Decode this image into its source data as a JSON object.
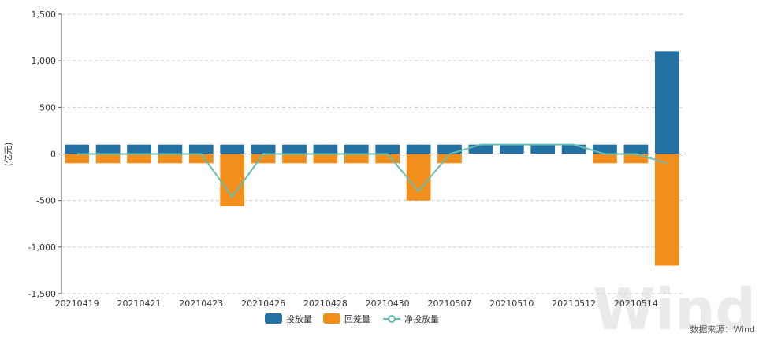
{
  "chart_data": {
    "type": "bar",
    "ylabel": "(亿元)",
    "ylim": [
      -1500,
      1500
    ],
    "yticks": [
      1500,
      1000,
      500,
      0,
      -500,
      -1000,
      -1500
    ],
    "ytick_labels": [
      "1,500",
      "1,000",
      "500",
      "0",
      "-500",
      "-1,000",
      "-1,500"
    ],
    "grid": true,
    "legend_position": "bottom-center",
    "categories": [
      "20210419",
      "20210420",
      "20210421",
      "20210422",
      "20210423",
      "20210425",
      "20210426",
      "20210427",
      "20210428",
      "20210429",
      "20210430",
      "20210506",
      "20210507",
      "20210508",
      "20210510",
      "20210511",
      "20210512",
      "20210513",
      "20210514",
      "20210517"
    ],
    "xtick_labels": [
      "20210419",
      "20210421",
      "20210423",
      "20210426",
      "20210428",
      "20210430",
      "20210507",
      "20210510",
      "20210512",
      "20210514"
    ],
    "xtick_label_indices": [
      0,
      2,
      4,
      6,
      8,
      10,
      12,
      14,
      16,
      18
    ],
    "series": [
      {
        "name": "投放量",
        "type": "bar",
        "color": "#2471a3",
        "values": [
          100,
          100,
          100,
          100,
          100,
          100,
          100,
          100,
          100,
          100,
          100,
          100,
          100,
          100,
          100,
          100,
          100,
          100,
          100,
          1100
        ]
      },
      {
        "name": "回笼量",
        "type": "bar",
        "color": "#f28e1c",
        "values": [
          -100,
          -100,
          -100,
          -100,
          -100,
          -560,
          -100,
          -100,
          -100,
          -100,
          -100,
          -500,
          -100,
          0,
          0,
          0,
          0,
          -100,
          -100,
          -1200
        ]
      },
      {
        "name": "净投放量",
        "type": "line",
        "color": "#62bfb2",
        "values": [
          0,
          0,
          0,
          0,
          0,
          -460,
          0,
          0,
          0,
          0,
          0,
          -400,
          0,
          100,
          100,
          100,
          100,
          0,
          0,
          -100
        ]
      }
    ],
    "source_label": "数据来源：Wind",
    "watermark": "Wind"
  }
}
